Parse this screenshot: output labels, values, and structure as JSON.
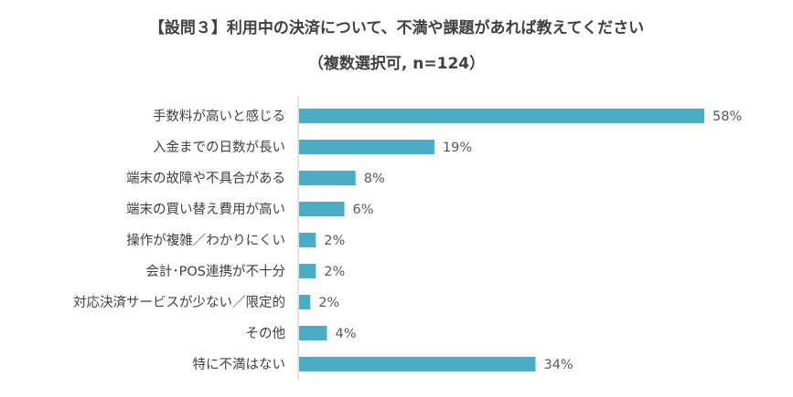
{
  "chart_data": {
    "type": "bar",
    "orientation": "horizontal",
    "title": "【設問３】利用中の決済について、不満や課題があれば教えてください",
    "subtitle": "（複数選択可, n=124）",
    "categories": [
      "手数料が高いと感じる",
      "入金までの日数が長い",
      "端末の故障や不具合がある",
      "端末の買い替え費用が高い",
      "操作が複雑／わかりにくい",
      "会計･POS連携が不十分",
      "対応決済サービスが少ない／限定的",
      "その他",
      "特に不満はない"
    ],
    "values": [
      58.1,
      19.4,
      8.1,
      6.5,
      2.4,
      2.4,
      1.6,
      4.0,
      33.9
    ],
    "data_labels": [
      "58%",
      "19%",
      "8%",
      "6%",
      "2%",
      "2%",
      "2%",
      "4%",
      "34%"
    ],
    "unit": "%",
    "xlim": [
      0,
      60
    ],
    "grid": false,
    "legend": "none",
    "bar_color": "#4BACC6"
  }
}
